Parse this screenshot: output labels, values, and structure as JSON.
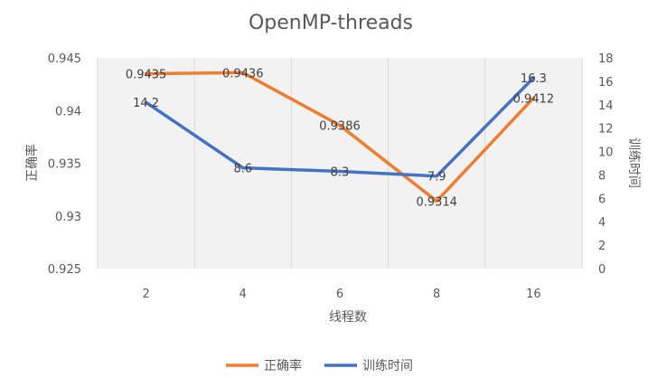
{
  "chart_data": {
    "type": "line",
    "title": "OpenMP-threads",
    "xlabel": "线程数",
    "ylabel_left": "正确率",
    "ylabel_right": "训练时间",
    "categories": [
      "2",
      "4",
      "6",
      "8",
      "16"
    ],
    "y_left_ticks": [
      "0.945",
      "0.94",
      "0.935",
      "0.93",
      "0.925"
    ],
    "y_right_ticks": [
      "18",
      "16",
      "14",
      "12",
      "10",
      "8",
      "6",
      "4",
      "2",
      "0"
    ],
    "ylim_left": [
      0.925,
      0.945
    ],
    "ylim_right": [
      0,
      18
    ],
    "grid": "vertical",
    "legend_position": "bottom",
    "series": [
      {
        "name": "正确率",
        "axis": "left",
        "color": "#ED7D31",
        "values": [
          0.9435,
          0.9436,
          0.9386,
          0.9314,
          0.9412
        ],
        "labels": [
          "0.9435",
          "0.9436",
          "0.9386",
          "0.9314",
          "0.9412"
        ]
      },
      {
        "name": "训练时间",
        "axis": "right",
        "color": "#4472C4",
        "values": [
          14.2,
          8.6,
          8.3,
          7.9,
          16.3
        ],
        "labels": [
          "14.2",
          "8.6",
          "8.3",
          "7.9",
          "16.3"
        ]
      }
    ]
  }
}
